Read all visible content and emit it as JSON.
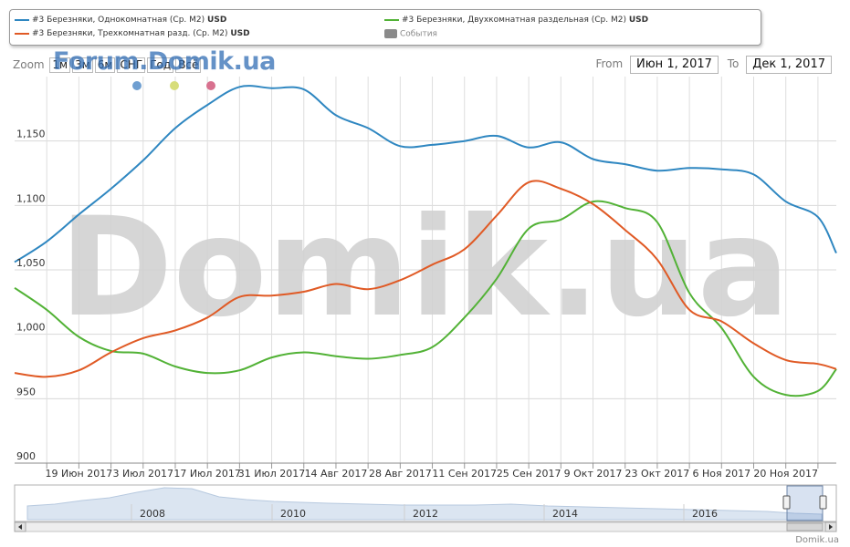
{
  "legend": {
    "items": [
      {
        "label": "#3 Березняки, Однокомнатная (Ср. M2)",
        "unit": "USD",
        "color": "#2f87c1"
      },
      {
        "label": "#3 Березняки, Двухкомнатная раздельная (Ср. M2)",
        "unit": "USD",
        "color": "#52b236"
      },
      {
        "label": "#3 Березняки, Трехкомнатная разд. (Ср. M2)",
        "unit": "USD",
        "color": "#e05a25"
      },
      {
        "label": "События",
        "color": "#8a8a8a"
      }
    ]
  },
  "zoom": {
    "label": "Zoom",
    "buttons": [
      "1м",
      "3м",
      "6м",
      "СНГ",
      "Год",
      "Всё"
    ]
  },
  "watermark": {
    "small": "Forum.Domik.ua",
    "big": "Domik.ua"
  },
  "range": {
    "from_label": "From",
    "from_value": "Июн 1, 2017",
    "to_label": "To",
    "to_value": "Дек 1, 2017"
  },
  "navigator": {
    "year_labels": [
      "2008",
      "2010",
      "2012",
      "2014",
      "2016"
    ]
  },
  "credit": "Domik.ua",
  "event_marker_colors": [
    "#6f9fd1",
    "#d7dd7a",
    "#d8718f"
  ],
  "chart_data": {
    "type": "line",
    "x_tick_labels": [
      "19 Июн 2017",
      "3 Июл 2017",
      "17 Июл 2017",
      "31 Июл 2017",
      "14 Авг 2017",
      "28 Авг 2017",
      "11 Сен 2017",
      "25 Сен 2017",
      "9 Окт 2017",
      "23 Окт 2017",
      "6 Ноя 2017",
      "20 Ноя 2017"
    ],
    "xlim": [
      "2017-06-05",
      "2017-12-01"
    ],
    "ylim": [
      900,
      1200
    ],
    "y_ticks": [
      900,
      950,
      1000,
      1050,
      1100,
      1150
    ],
    "y_tick_labels": [
      "900",
      "950",
      "1,000",
      "1,050",
      "1,100",
      "1,150"
    ],
    "grid": true,
    "legend_position": "top",
    "series": [
      {
        "name": "#3 Березняки, Однокомнатная (Ср. M2)",
        "color": "#2f87c1",
        "points": [
          [
            "2017-06-05",
            1056
          ],
          [
            "2017-06-12",
            1072
          ],
          [
            "2017-06-19",
            1093
          ],
          [
            "2017-06-26",
            1113
          ],
          [
            "2017-07-03",
            1135
          ],
          [
            "2017-07-10",
            1160
          ],
          [
            "2017-07-17",
            1178
          ],
          [
            "2017-07-24",
            1192
          ],
          [
            "2017-07-31",
            1191
          ],
          [
            "2017-08-07",
            1190
          ],
          [
            "2017-08-14",
            1170
          ],
          [
            "2017-08-21",
            1160
          ],
          [
            "2017-08-28",
            1146
          ],
          [
            "2017-09-04",
            1147
          ],
          [
            "2017-09-11",
            1150
          ],
          [
            "2017-09-18",
            1154
          ],
          [
            "2017-09-25",
            1145
          ],
          [
            "2017-10-02",
            1149
          ],
          [
            "2017-10-09",
            1136
          ],
          [
            "2017-10-16",
            1132
          ],
          [
            "2017-10-23",
            1127
          ],
          [
            "2017-10-30",
            1129
          ],
          [
            "2017-11-06",
            1128
          ],
          [
            "2017-11-13",
            1124
          ],
          [
            "2017-11-20",
            1103
          ],
          [
            "2017-11-27",
            1091
          ],
          [
            "2017-12-01",
            1063
          ]
        ]
      },
      {
        "name": "#3 Березняки, Двухкомнатная раздельная (Ср. M2)",
        "color": "#52b236",
        "points": [
          [
            "2017-06-05",
            1036
          ],
          [
            "2017-06-12",
            1019
          ],
          [
            "2017-06-19",
            998
          ],
          [
            "2017-06-26",
            987
          ],
          [
            "2017-07-03",
            985
          ],
          [
            "2017-07-10",
            975
          ],
          [
            "2017-07-17",
            970
          ],
          [
            "2017-07-24",
            972
          ],
          [
            "2017-07-31",
            982
          ],
          [
            "2017-08-07",
            986
          ],
          [
            "2017-08-14",
            983
          ],
          [
            "2017-08-21",
            981
          ],
          [
            "2017-08-28",
            984
          ],
          [
            "2017-09-04",
            990
          ],
          [
            "2017-09-11",
            1013
          ],
          [
            "2017-09-18",
            1043
          ],
          [
            "2017-09-25",
            1082
          ],
          [
            "2017-10-02",
            1089
          ],
          [
            "2017-10-09",
            1103
          ],
          [
            "2017-10-16",
            1098
          ],
          [
            "2017-10-23",
            1087
          ],
          [
            "2017-10-30",
            1032
          ],
          [
            "2017-11-06",
            1005
          ],
          [
            "2017-11-13",
            967
          ],
          [
            "2017-11-20",
            953
          ],
          [
            "2017-11-27",
            956
          ],
          [
            "2017-12-01",
            973
          ]
        ]
      },
      {
        "name": "#3 Березняки, Трехкомнатная разд. (Ср. M2)",
        "color": "#e05a25",
        "points": [
          [
            "2017-06-05",
            970
          ],
          [
            "2017-06-12",
            967
          ],
          [
            "2017-06-19",
            972
          ],
          [
            "2017-06-26",
            986
          ],
          [
            "2017-07-03",
            997
          ],
          [
            "2017-07-10",
            1003
          ],
          [
            "2017-07-17",
            1013
          ],
          [
            "2017-07-24",
            1029
          ],
          [
            "2017-07-31",
            1030
          ],
          [
            "2017-08-07",
            1033
          ],
          [
            "2017-08-14",
            1039
          ],
          [
            "2017-08-21",
            1035
          ],
          [
            "2017-08-28",
            1042
          ],
          [
            "2017-09-04",
            1054
          ],
          [
            "2017-09-11",
            1066
          ],
          [
            "2017-09-18",
            1092
          ],
          [
            "2017-09-25",
            1118
          ],
          [
            "2017-10-02",
            1113
          ],
          [
            "2017-10-09",
            1101
          ],
          [
            "2017-10-16",
            1081
          ],
          [
            "2017-10-23",
            1058
          ],
          [
            "2017-10-30",
            1019
          ],
          [
            "2017-11-06",
            1010
          ],
          [
            "2017-11-13",
            993
          ],
          [
            "2017-11-20",
            980
          ],
          [
            "2017-11-27",
            977
          ],
          [
            "2017-12-01",
            973
          ]
        ]
      }
    ]
  }
}
